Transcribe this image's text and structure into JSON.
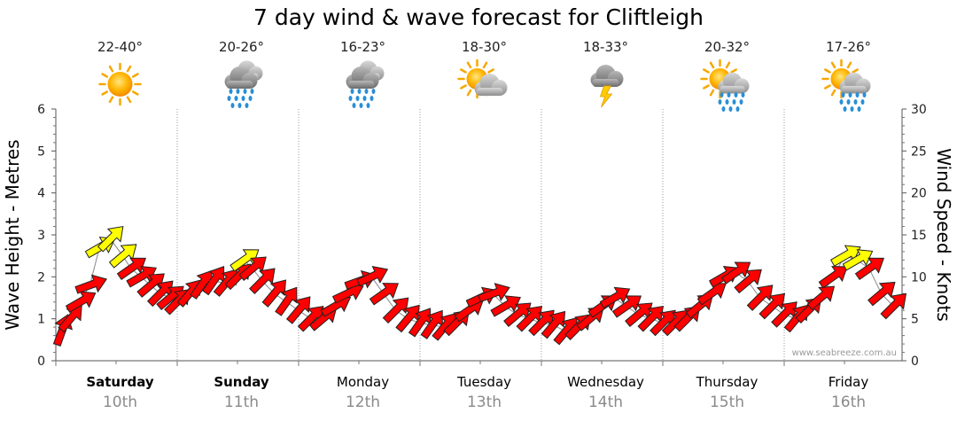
{
  "chart_data": {
    "type": "line",
    "title": "7 day wind & wave forecast for Cliftleigh",
    "ylabel_left": "Wave Height - Metres",
    "ylabel_right": "Wind Speed - Knots",
    "ylim_left": [
      0,
      6
    ],
    "ylim_right": [
      0,
      30
    ],
    "left_ticks": [
      "0",
      "1",
      "2",
      "3",
      "4",
      "5",
      "6"
    ],
    "right_ticks": [
      "0",
      "5",
      "10",
      "15",
      "20",
      "25",
      "30"
    ],
    "grid": "vertical dotted",
    "watermark": "www.seabreeze.com.au",
    "days": [
      {
        "name": "Saturday",
        "date": "10th",
        "bold": true,
        "temp": "22-40°",
        "weather": "sunny"
      },
      {
        "name": "Sunday",
        "date": "11th",
        "bold": true,
        "temp": "20-26°",
        "weather": "rain"
      },
      {
        "name": "Monday",
        "date": "12th",
        "bold": false,
        "temp": "16-23°",
        "weather": "rain"
      },
      {
        "name": "Tuesday",
        "date": "13th",
        "bold": false,
        "temp": "18-30°",
        "weather": "partly-cloudy"
      },
      {
        "name": "Wednesday",
        "date": "14th",
        "bold": false,
        "temp": "18-33°",
        "weather": "storm"
      },
      {
        "name": "Thursday",
        "date": "15th",
        "bold": false,
        "temp": "20-32°",
        "weather": "sun-showers"
      },
      {
        "name": "Friday",
        "date": "16th",
        "bold": false,
        "temp": "17-26°",
        "weather": "sun-showers"
      }
    ],
    "series": [
      {
        "name": "Wind",
        "x_unit": "days from start",
        "x": [
          0.05,
          0.12,
          0.2,
          0.28,
          0.36,
          0.45,
          0.55,
          0.62,
          0.7,
          0.78,
          0.86,
          0.94,
          1.0,
          1.1,
          1.2,
          1.3,
          1.4,
          1.5,
          1.55,
          1.62,
          1.7,
          1.8,
          1.9,
          2.0,
          2.1,
          2.2,
          2.3,
          2.4,
          2.5,
          2.6,
          2.7,
          2.8,
          2.9,
          3.0,
          3.1,
          3.2,
          3.3,
          3.4,
          3.5,
          3.6,
          3.7,
          3.8,
          3.9,
          4.0,
          4.1,
          4.2,
          4.3,
          4.4,
          4.5,
          4.6,
          4.7,
          4.8,
          4.9,
          5.0,
          5.1,
          5.2,
          5.3,
          5.4,
          5.5,
          5.6,
          5.7,
          5.8,
          5.9,
          6.0,
          6.1,
          6.2,
          6.3,
          6.4,
          6.5,
          6.6,
          6.7,
          6.8,
          6.9
        ],
        "wave_height": [
          0.7,
          1.0,
          1.4,
          1.8,
          2.7,
          2.9,
          2.5,
          2.2,
          2.0,
          1.8,
          1.6,
          1.5,
          1.4,
          1.6,
          1.8,
          1.9,
          1.85,
          2.0,
          2.4,
          2.2,
          1.9,
          1.6,
          1.4,
          1.2,
          1.0,
          1.0,
          1.3,
          1.6,
          1.9,
          2.0,
          1.6,
          1.2,
          1.0,
          0.9,
          0.85,
          0.8,
          0.9,
          1.2,
          1.5,
          1.6,
          1.3,
          1.1,
          1.0,
          0.9,
          0.85,
          0.7,
          0.8,
          1.0,
          1.3,
          1.5,
          1.3,
          1.1,
          1.0,
          0.9,
          0.9,
          1.0,
          1.3,
          1.6,
          2.0,
          2.1,
          1.9,
          1.5,
          1.3,
          1.1,
          1.0,
          1.2,
          1.5,
          2.0,
          2.5,
          2.4,
          2.2,
          1.6,
          1.3
        ],
        "wind_knots": [
          6,
          8,
          10,
          12,
          18,
          16,
          14,
          12,
          11,
          10,
          8,
          8,
          7,
          10,
          11,
          12,
          12,
          13,
          15,
          13,
          11,
          9,
          8,
          7,
          6,
          6,
          8,
          10,
          11,
          12,
          10,
          8,
          6,
          5,
          5,
          5,
          6,
          8,
          10,
          11,
          9,
          7,
          6,
          5,
          5,
          4,
          5,
          6,
          8,
          9,
          8,
          7,
          6,
          6,
          6,
          6,
          8,
          10,
          12,
          13,
          12,
          10,
          8,
          7,
          6,
          7,
          9,
          12,
          15,
          14,
          12,
          9,
          7
        ],
        "direction_deg": [
          200,
          220,
          240,
          250,
          240,
          225,
          230,
          235,
          240,
          230,
          225,
          230,
          225,
          220,
          215,
          215,
          220,
          225,
          235,
          230,
          225,
          220,
          215,
          220,
          225,
          230,
          240,
          245,
          250,
          245,
          235,
          225,
          220,
          215,
          215,
          220,
          225,
          235,
          245,
          250,
          240,
          230,
          225,
          225,
          220,
          220,
          225,
          230,
          235,
          240,
          235,
          230,
          225,
          225,
          225,
          225,
          230,
          235,
          240,
          235,
          230,
          225,
          225,
          225,
          220,
          225,
          230,
          235,
          240,
          240,
          235,
          230,
          225
        ]
      }
    ]
  }
}
